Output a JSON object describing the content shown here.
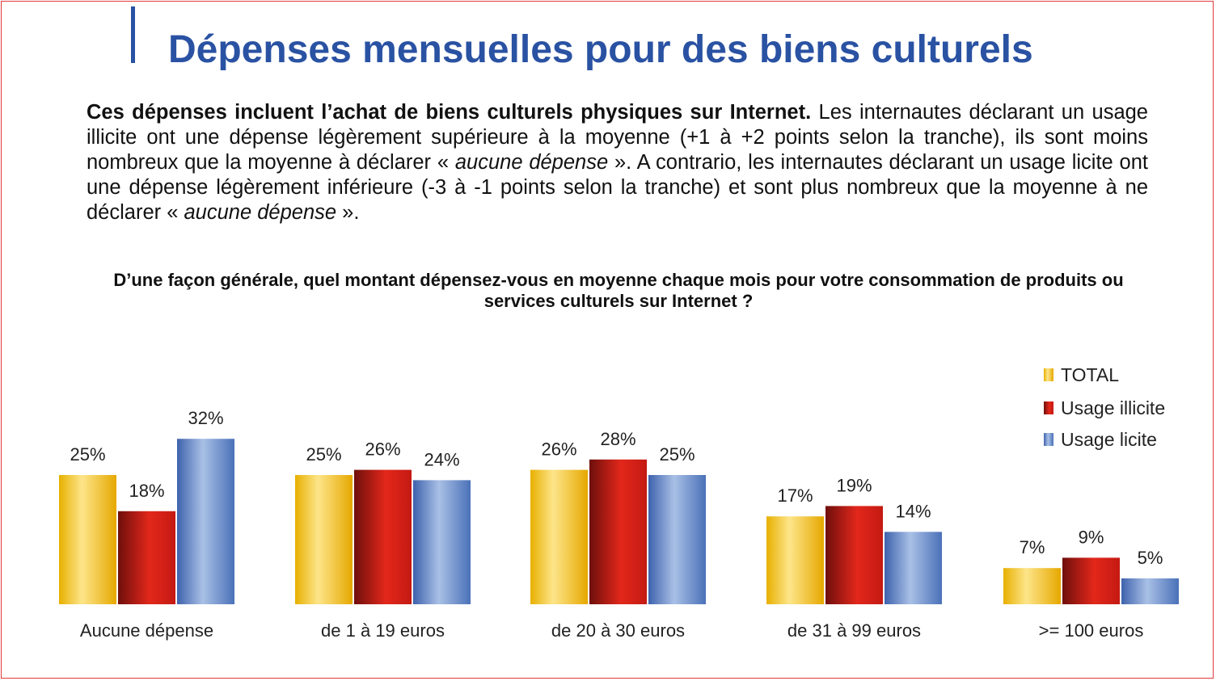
{
  "header": {
    "title": "Dépenses mensuelles pour des biens culturels"
  },
  "intro": {
    "bold": "Ces dépenses incluent l’achat de biens culturels physiques sur Internet.",
    "part1": " Les internautes déclarant un usage illicite ont une dépense légèrement supérieure à la moyenne (+1 à +2 points selon la tranche), ils sont moins nombreux que la moyenne à déclarer « ",
    "italic1": "aucune dépense",
    "part2": " ». A contrario, les internautes déclarant un usage licite ont une dépense légèrement inférieure (-3 à -1 points selon la tranche) et sont plus nombreux que la moyenne à ne déclarer « ",
    "italic2": "aucune dépense",
    "part3": " »."
  },
  "question": "D’une façon générale, quel montant dépensez-vous en moyenne chaque mois pour votre consommation de produits ou services culturels sur Internet ?",
  "chart_data": {
    "type": "bar",
    "title": "",
    "xlabel": "",
    "ylabel": "",
    "ylim": [
      0,
      35
    ],
    "grid": false,
    "legend_position": "top-right",
    "unit": "%",
    "categories": [
      "Aucune dépense",
      "de 1 à 19 euros",
      "de 20 à 30  euros",
      "de 31 à 99  euros",
      ">= 100  euros"
    ],
    "series": [
      {
        "name": "TOTAL",
        "color": "#f2c318",
        "values": [
          25,
          25,
          26,
          17,
          7
        ]
      },
      {
        "name": "Usage illicite",
        "color": "#d8231a",
        "values": [
          18,
          26,
          28,
          19,
          9
        ]
      },
      {
        "name": "Usage licite",
        "color": "#5b82c4",
        "values": [
          32,
          24,
          25,
          14,
          5
        ]
      }
    ]
  }
}
